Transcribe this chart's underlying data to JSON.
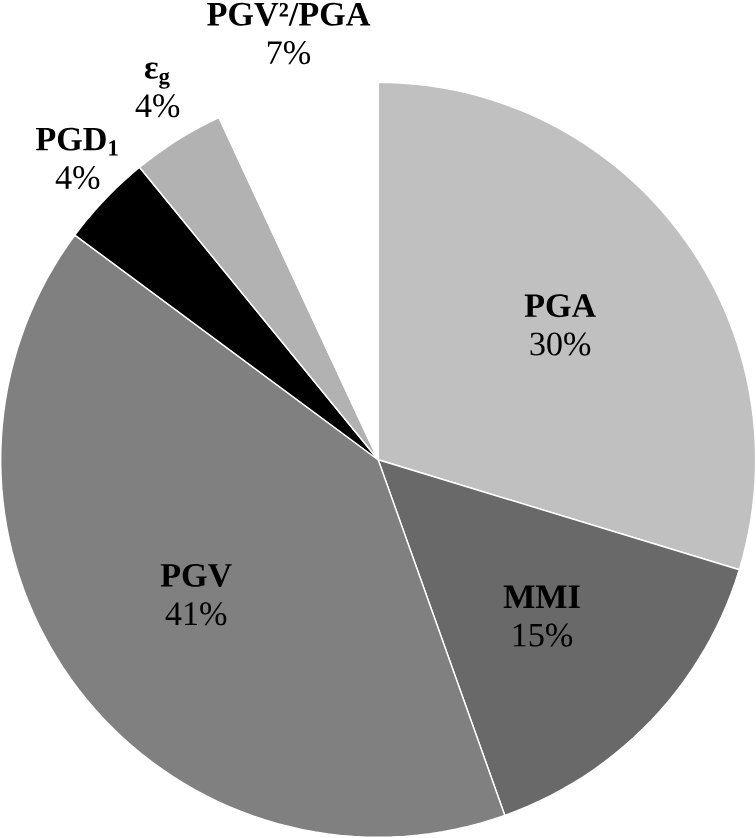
{
  "chart_data": {
    "type": "pie",
    "categories": [
      "PGA",
      "MMI",
      "PGV",
      "PGD$_{1}$",
      "ε$_{g}$",
      "PGV²/PGA"
    ],
    "values": [
      30,
      15,
      41,
      4,
      4,
      7
    ],
    "value_labels": [
      "30%",
      "15%",
      "41%",
      "4%",
      "4%",
      "7%"
    ],
    "colors": [
      "#c0c0c0",
      "#696969",
      "#808080",
      "#000000",
      "#b2b2b2",
      "#ffffff"
    ]
  }
}
